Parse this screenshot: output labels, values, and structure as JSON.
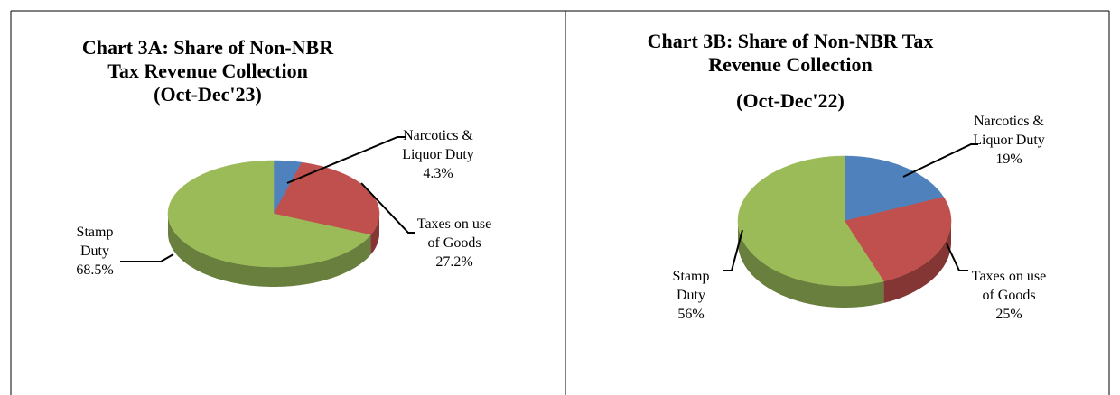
{
  "chart_data": [
    {
      "type": "pie",
      "title": "Chart 3A: Share of Non-NBR Tax Revenue Collection",
      "subtitle": "(Oct-Dec'23)",
      "categories": [
        "Narcotics & Liquor Duty",
        "Taxes on use of Goods",
        "Stamp Duty"
      ],
      "values": [
        4.3,
        27.2,
        68.5
      ],
      "value_labels": [
        "4.3%",
        "27.2%",
        "68.5%"
      ],
      "colors": [
        "#4f81bd",
        "#c0504d",
        "#9bbb59"
      ]
    },
    {
      "type": "pie",
      "title": "Chart 3B: Share of Non-NBR Tax Revenue Collection",
      "subtitle": "(Oct-Dec'22)",
      "categories": [
        "Narcotics & Liquor Duty",
        "Taxes on use of Goods",
        "Stamp Duty"
      ],
      "values": [
        19,
        25,
        56
      ],
      "value_labels": [
        "19%",
        "25%",
        "56%"
      ],
      "colors": [
        "#4f81bd",
        "#c0504d",
        "#9bbb59"
      ]
    }
  ]
}
